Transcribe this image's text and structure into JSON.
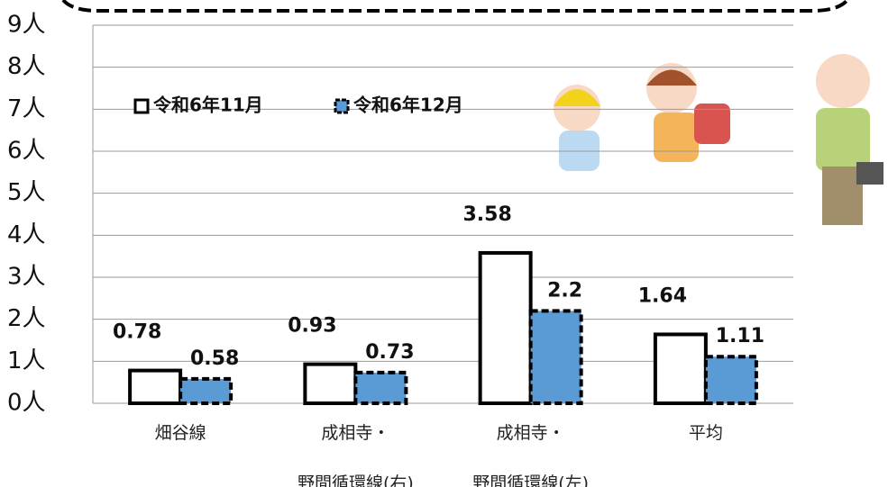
{
  "chart_data": {
    "type": "bar",
    "categories": [
      "畑谷線",
      "成相寺・\n野間循環線(右)",
      "成相寺・\n野間循環線(左)",
      "平均"
    ],
    "series": [
      {
        "name": "令和6年11月",
        "color": "#ffffff",
        "values": [
          0.78,
          0.93,
          3.58,
          1.64
        ]
      },
      {
        "name": "令和6年12月",
        "color": "#5b9bd5",
        "values": [
          0.58,
          0.73,
          2.2,
          1.11
        ]
      }
    ],
    "ylim": [
      0,
      9
    ],
    "yticks": [
      {
        "value": 0,
        "label": "0人"
      },
      {
        "value": 1,
        "label": "1人"
      },
      {
        "value": 2,
        "label": "2人"
      },
      {
        "value": 3,
        "label": "3人"
      },
      {
        "value": 4,
        "label": "4人"
      },
      {
        "value": 5,
        "label": "5人"
      },
      {
        "value": 6,
        "label": "6人"
      },
      {
        "value": 7,
        "label": "7人"
      },
      {
        "value": 8,
        "label": "8人"
      },
      {
        "value": 9,
        "label": "9人"
      }
    ],
    "grid": true,
    "legend": "upper left"
  }
}
